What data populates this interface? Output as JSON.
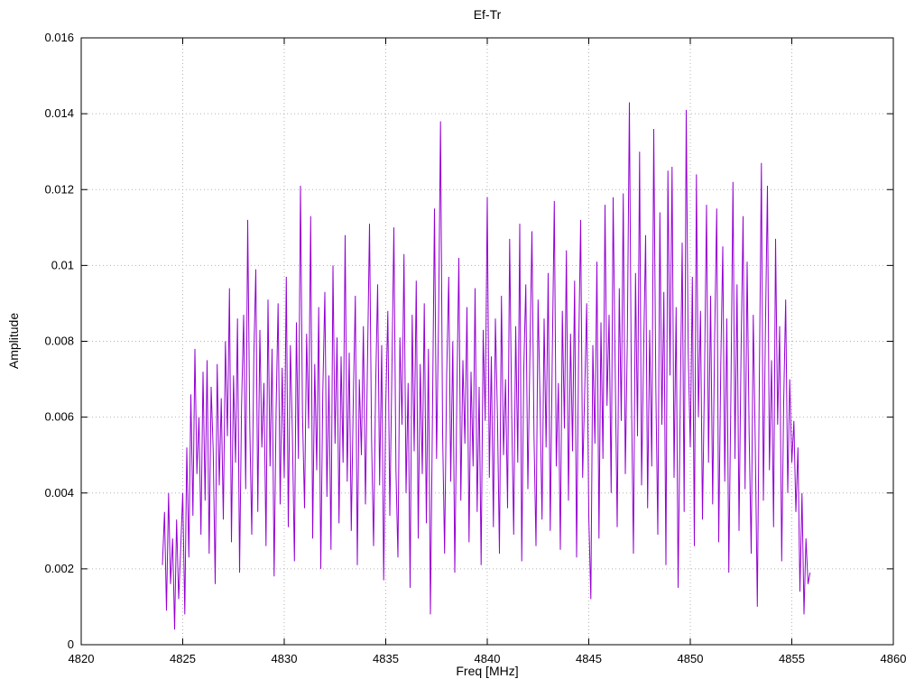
{
  "chart_data": {
    "type": "line",
    "title": "Ef-Tr",
    "xlabel": "Freq [MHz]",
    "ylabel": "Amplitude",
    "xlim": [
      4820,
      4860
    ],
    "ylim": [
      0,
      0.016
    ],
    "grid": true,
    "legend": "none",
    "line_color": "#9400d3",
    "x_tick_values": [
      4820,
      4825,
      4830,
      4835,
      4840,
      4845,
      4850,
      4855,
      4860
    ],
    "x_tick_labels": [
      "4820",
      "4825",
      "4830",
      "4835",
      "4840",
      "4845",
      "4850",
      "4855",
      "4860"
    ],
    "y_tick_values": [
      0,
      0.002,
      0.004,
      0.006,
      0.008,
      0.01,
      0.012,
      0.014,
      0.016
    ],
    "y_tick_labels": [
      "0",
      "0.002",
      "0.004",
      "0.006",
      "0.008",
      "0.01",
      "0.012",
      "0.014",
      "0.016"
    ],
    "series": {
      "name": "Ef-Tr",
      "x_start": 4824.0,
      "x_step": 0.1,
      "values": [
        0.0021,
        0.0035,
        0.0009,
        0.004,
        0.0016,
        0.0028,
        0.0004,
        0.0033,
        0.0012,
        0.0025,
        0.004,
        0.0008,
        0.0052,
        0.0023,
        0.0066,
        0.0034,
        0.0078,
        0.0045,
        0.006,
        0.0029,
        0.0072,
        0.0038,
        0.0075,
        0.0024,
        0.0068,
        0.0051,
        0.0016,
        0.0074,
        0.0042,
        0.0065,
        0.0033,
        0.008,
        0.0055,
        0.0094,
        0.0027,
        0.0071,
        0.0048,
        0.0086,
        0.0019,
        0.0063,
        0.0087,
        0.0041,
        0.0112,
        0.0058,
        0.0029,
        0.0076,
        0.0099,
        0.0035,
        0.0083,
        0.0052,
        0.0069,
        0.0026,
        0.0091,
        0.0047,
        0.0078,
        0.0018,
        0.0062,
        0.009,
        0.0037,
        0.0073,
        0.0044,
        0.0097,
        0.0031,
        0.0079,
        0.0056,
        0.0022,
        0.0085,
        0.0049,
        0.0121,
        0.0061,
        0.0036,
        0.0082,
        0.0057,
        0.0113,
        0.0028,
        0.0074,
        0.0046,
        0.0089,
        0.002,
        0.0066,
        0.0093,
        0.0039,
        0.0071,
        0.0025,
        0.01,
        0.0053,
        0.0081,
        0.0032,
        0.0076,
        0.0048,
        0.0108,
        0.0043,
        0.0077,
        0.003,
        0.0064,
        0.0092,
        0.0021,
        0.007,
        0.005,
        0.0084,
        0.0037,
        0.0075,
        0.0111,
        0.0054,
        0.0026,
        0.0068,
        0.0095,
        0.0042,
        0.0079,
        0.0017,
        0.0063,
        0.0088,
        0.0034,
        0.0072,
        0.011,
        0.0046,
        0.0023,
        0.0081,
        0.0058,
        0.0103,
        0.004,
        0.0069,
        0.0015,
        0.0087,
        0.0051,
        0.0096,
        0.0028,
        0.0074,
        0.0045,
        0.009,
        0.0032,
        0.0078,
        0.0008,
        0.0061,
        0.0115,
        0.0049,
        0.0085,
        0.0138,
        0.0056,
        0.0024,
        0.0071,
        0.0097,
        0.0043,
        0.008,
        0.0019,
        0.0066,
        0.0102,
        0.0038,
        0.0075,
        0.0053,
        0.0089,
        0.0027,
        0.0072,
        0.0047,
        0.0094,
        0.0035,
        0.0068,
        0.0021,
        0.0083,
        0.0059,
        0.0118,
        0.0044,
        0.0076,
        0.0031,
        0.0086,
        0.006,
        0.0024,
        0.0092,
        0.005,
        0.007,
        0.0036,
        0.0107,
        0.0062,
        0.0029,
        0.0084,
        0.0048,
        0.0111,
        0.0022,
        0.0073,
        0.0095,
        0.0041,
        0.0077,
        0.0109,
        0.0055,
        0.0026,
        0.0091,
        0.0064,
        0.0033,
        0.0086,
        0.0052,
        0.0098,
        0.003,
        0.0075,
        0.0117,
        0.0047,
        0.0069,
        0.0025,
        0.0088,
        0.0057,
        0.0104,
        0.0038,
        0.0082,
        0.0051,
        0.0096,
        0.0023,
        0.0078,
        0.0112,
        0.0044,
        0.0067,
        0.009,
        0.0034,
        0.0012,
        0.0079,
        0.0053,
        0.0101,
        0.0028,
        0.0085,
        0.0049,
        0.0116,
        0.0063,
        0.0087,
        0.004,
        0.0118,
        0.0072,
        0.0031,
        0.0094,
        0.0059,
        0.0119,
        0.0045,
        0.008,
        0.0143,
        0.0065,
        0.0024,
        0.0098,
        0.0055,
        0.013,
        0.0042,
        0.0076,
        0.0108,
        0.0036,
        0.0083,
        0.0047,
        0.0136,
        0.0068,
        0.0029,
        0.0114,
        0.0058,
        0.0093,
        0.0021,
        0.0125,
        0.0071,
        0.0126,
        0.0044,
        0.0089,
        0.0015,
        0.0062,
        0.0106,
        0.0035,
        0.0141,
        0.0077,
        0.0052,
        0.0097,
        0.0026,
        0.0124,
        0.006,
        0.0088,
        0.0033,
        0.007,
        0.0116,
        0.0048,
        0.0092,
        0.0037,
        0.0081,
        0.0115,
        0.0027,
        0.0074,
        0.0105,
        0.0043,
        0.0086,
        0.0019,
        0.0066,
        0.0122,
        0.0049,
        0.0095,
        0.003,
        0.0078,
        0.0113,
        0.0041,
        0.0101,
        0.0056,
        0.0024,
        0.0087,
        0.0053,
        0.001,
        0.0069,
        0.0127,
        0.0038,
        0.0082,
        0.0121,
        0.0046,
        0.0075,
        0.0031,
        0.0107,
        0.0058,
        0.0084,
        0.0022,
        0.0064,
        0.0091,
        0.004,
        0.007,
        0.0048,
        0.0059,
        0.0035,
        0.0052,
        0.0014,
        0.004,
        0.0008,
        0.0028,
        0.0016,
        0.0019
      ]
    }
  }
}
